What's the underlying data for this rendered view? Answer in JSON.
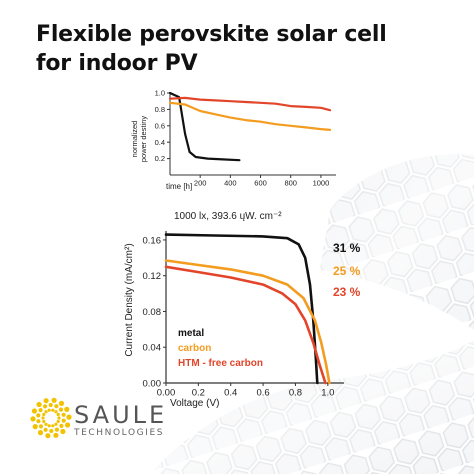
{
  "page": {
    "title_lines": [
      "Flexible perovskite solar cell",
      "for indoor PV"
    ]
  },
  "brand": {
    "name": "SAULE",
    "sub": "TECHNOLOGIES"
  },
  "colors": {
    "black": "#111111",
    "orange": "#f39c1f",
    "red": "#e2452a",
    "logo_yellow": "#f2c200"
  },
  "chart_data": [
    {
      "type": "line",
      "title": "",
      "xlabel": "time [h]",
      "ylabel": "normalized power destiny",
      "xlim": [
        0,
        1100
      ],
      "ylim": [
        0.0,
        1.0
      ],
      "xticks": [
        200,
        400,
        600,
        800,
        1000
      ],
      "yticks": [
        0.2,
        0.4,
        0.6,
        0.8,
        1.0
      ],
      "tick_labels_x": [
        "200",
        "400",
        "600",
        "800",
        "1000"
      ],
      "tick_labels_y": [
        "0.2",
        "0.4",
        "0.6",
        "0.8",
        "1.0"
      ],
      "series": [
        {
          "color": "black",
          "x": [
            0,
            60,
            100,
            130,
            170,
            250,
            350,
            460
          ],
          "y": [
            1.0,
            0.95,
            0.5,
            0.28,
            0.22,
            0.2,
            0.19,
            0.18
          ]
        },
        {
          "color": "orange",
          "x": [
            0,
            100,
            200,
            300,
            400,
            500,
            600,
            700,
            800,
            900,
            1000,
            1060
          ],
          "y": [
            0.88,
            0.86,
            0.78,
            0.74,
            0.7,
            0.67,
            0.65,
            0.62,
            0.6,
            0.58,
            0.56,
            0.55
          ]
        },
        {
          "color": "red",
          "x": [
            0,
            100,
            200,
            300,
            400,
            500,
            600,
            700,
            800,
            900,
            1000,
            1060
          ],
          "y": [
            0.93,
            0.94,
            0.92,
            0.91,
            0.9,
            0.89,
            0.88,
            0.87,
            0.84,
            0.83,
            0.82,
            0.79
          ]
        }
      ]
    },
    {
      "type": "line",
      "title": "1000 lx, 393.6 ųW. cm⁻²",
      "xlabel": "Voltage (V)",
      "ylabel": "Current Density (mA/cm²)",
      "xlim": [
        0.0,
        1.1
      ],
      "ylim": [
        0.0,
        0.17
      ],
      "xticks": [
        0.0,
        0.2,
        0.4,
        0.6,
        0.8,
        1.0
      ],
      "yticks": [
        0.0,
        0.04,
        0.08,
        0.12,
        0.16
      ],
      "tick_labels_x": [
        "0.00",
        "0.2",
        "0.4",
        "0.6",
        "0.8",
        "1.0"
      ],
      "tick_labels_y": [
        "0.00",
        "0.04",
        "0.08",
        "0.12",
        "0.16"
      ],
      "legend": {
        "placement": "bottom-left",
        "entries": [
          {
            "label": "metal",
            "color": "black"
          },
          {
            "label": "carbon",
            "color": "orange"
          },
          {
            "label": "HTM - free carbon",
            "color": "red"
          }
        ]
      },
      "annotations": [
        {
          "text": "31 %",
          "color": "black"
        },
        {
          "text": "25 %",
          "color": "orange"
        },
        {
          "text": "23 %",
          "color": "red"
        }
      ],
      "series": [
        {
          "color": "black",
          "x": [
            0.0,
            0.3,
            0.6,
            0.75,
            0.82,
            0.86,
            0.89,
            0.91,
            0.925,
            0.935
          ],
          "y": [
            0.166,
            0.165,
            0.164,
            0.162,
            0.155,
            0.14,
            0.11,
            0.07,
            0.03,
            0.0
          ]
        },
        {
          "color": "orange",
          "x": [
            0.0,
            0.2,
            0.4,
            0.6,
            0.75,
            0.85,
            0.92,
            0.96,
            0.99,
            1.01
          ],
          "y": [
            0.137,
            0.132,
            0.127,
            0.12,
            0.11,
            0.095,
            0.07,
            0.045,
            0.02,
            0.0
          ]
        },
        {
          "color": "red",
          "x": [
            0.0,
            0.2,
            0.4,
            0.6,
            0.72,
            0.8,
            0.86,
            0.91,
            0.95,
            0.985
          ],
          "y": [
            0.13,
            0.124,
            0.118,
            0.11,
            0.1,
            0.088,
            0.07,
            0.045,
            0.02,
            0.0
          ]
        }
      ]
    }
  ]
}
